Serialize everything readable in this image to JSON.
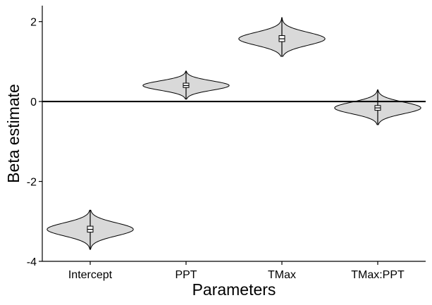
{
  "chart_data": {
    "type": "violin",
    "xlabel": "Parameters",
    "ylabel": "Beta estimate",
    "categories": [
      "Intercept",
      "PPT",
      "TMax",
      "TMax:PPT"
    ],
    "ylim": [
      -4,
      2.4
    ],
    "yticks": [
      -4,
      -2,
      0,
      2
    ],
    "ytick_labels": [
      "-4",
      "-2",
      "0",
      "2"
    ],
    "reference_line": 0,
    "grid": false,
    "violin_fill": "#d9d9d9",
    "series": [
      {
        "category": "Intercept",
        "median": -3.2,
        "q1": -3.27,
        "q3": -3.12,
        "min": -3.7,
        "max": -2.72,
        "halfwidth": 0.45
      },
      {
        "category": "PPT",
        "median": 0.4,
        "q1": 0.35,
        "q3": 0.46,
        "min": 0.06,
        "max": 0.76,
        "halfwidth": 0.45
      },
      {
        "category": "TMax",
        "median": 1.57,
        "q1": 1.5,
        "q3": 1.65,
        "min": 1.13,
        "max": 2.1,
        "halfwidth": 0.45
      },
      {
        "category": "TMax:PPT",
        "median": -0.16,
        "q1": -0.22,
        "q3": -0.1,
        "min": -0.58,
        "max": 0.29,
        "halfwidth": 0.45
      }
    ]
  }
}
